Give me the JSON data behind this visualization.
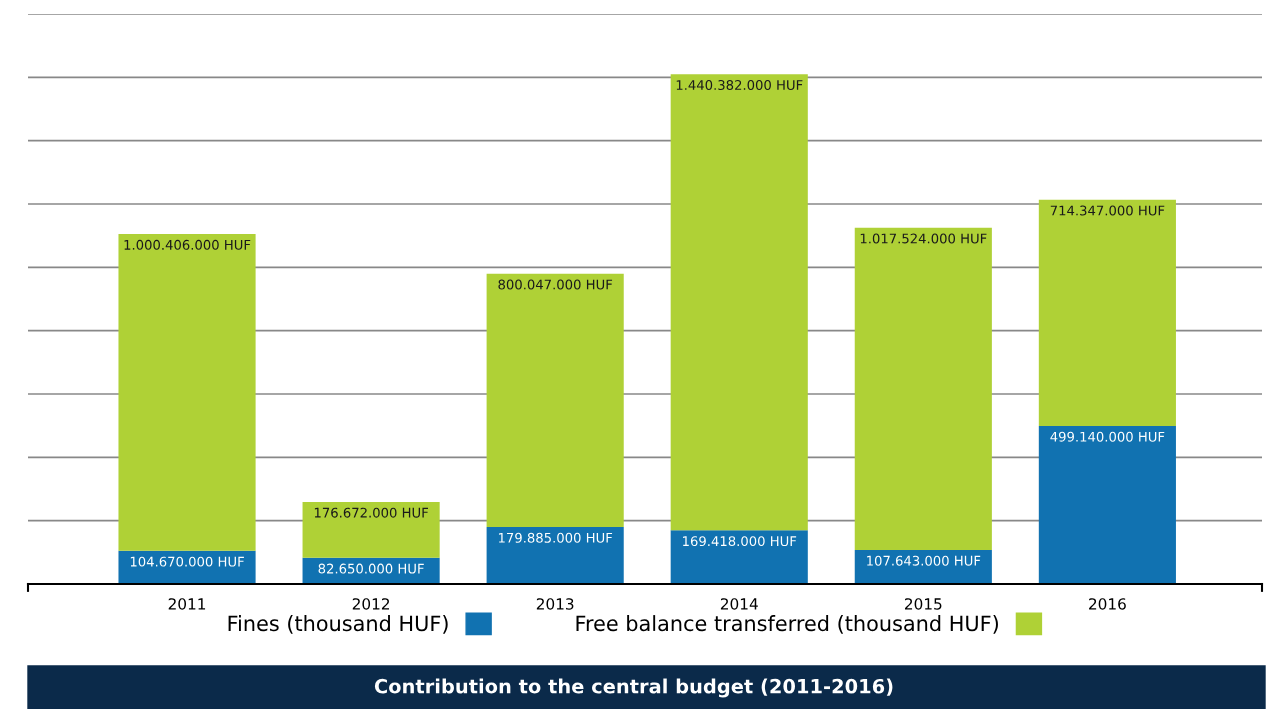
{
  "chart_data": {
    "type": "bar",
    "title": "Contribution to the central budget (2011-2016)",
    "categories": [
      "2011",
      "2012",
      "2013",
      "2014",
      "2015",
      "2016"
    ],
    "stacked": true,
    "series": [
      {
        "name": "Fines (thousand HUF)",
        "color": "#1172b1",
        "values": [
          104670000,
          82650000,
          179885000,
          169418000,
          107643000,
          499140000
        ],
        "value_labels": [
          "104.670.000 HUF",
          "82.650.000 HUF",
          "179.885.000 HUF",
          "169.418.000 HUF",
          "107.643.000 HUF",
          "499.140.000 HUF"
        ]
      },
      {
        "name": "Free balance transferred (thousand HUF)",
        "color": "#afd136",
        "values": [
          1000406000,
          176672000,
          800047000,
          1440382000,
          1017524000,
          714347000
        ],
        "value_labels": [
          "1.000.406.000 HUF",
          "176.672.000 HUF",
          "800.047.000 HUF",
          "1.440.382.000 HUF",
          "1.017.524.000 HUF",
          "714.347.000 HUF"
        ]
      }
    ],
    "ylim": [
      0,
      1800000000
    ],
    "yticks": [
      {
        "value": 200000000,
        "label": null
      },
      {
        "value": 400000000,
        "label": null
      },
      {
        "value": 600000000,
        "label": null
      },
      {
        "value": 800000000,
        "label": null
      },
      {
        "value": 1000000000,
        "label": null
      },
      {
        "value": 1200000000,
        "label": null
      },
      {
        "value": 1400000000,
        "label": null
      },
      {
        "value": 1600000000,
        "label": null
      },
      {
        "value": 1800000000,
        "label": null
      }
    ],
    "grid": "y",
    "legend": "bottom",
    "tick_labels": "x"
  }
}
